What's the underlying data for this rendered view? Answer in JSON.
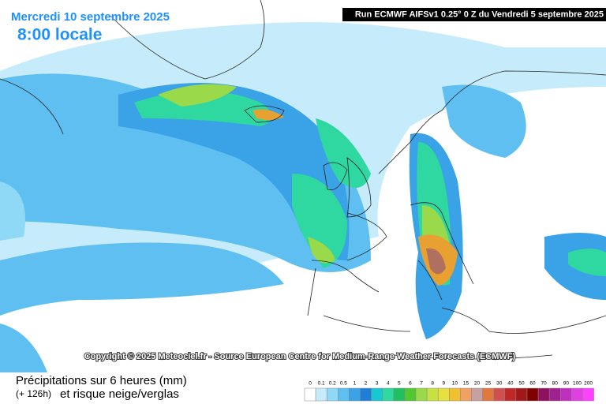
{
  "header": {
    "date": "Mercredi 10 septembre 2025",
    "time": "8:00 locale",
    "run": "Run ECMWF AIFSv1 0.25° 0 Z du Vendredi 5 septembre 2025"
  },
  "copyright": "Copyright © 2025 Meteociel.fr - Source European Centre for Medium-Range Weather Forecasts (ECMWF)",
  "legend": {
    "title": "Précipitations sur 6 heures (mm)",
    "lead_time": "(+ 126h)",
    "subtitle": "et risque neige/verglas",
    "scale": [
      {
        "label": "0",
        "color": "#ffffff"
      },
      {
        "label": "0.1",
        "color": "#c6ecfb"
      },
      {
        "label": "0.2",
        "color": "#8fd8f6"
      },
      {
        "label": "0.5",
        "color": "#5fbff0"
      },
      {
        "label": "1",
        "color": "#3aa2e6"
      },
      {
        "label": "2",
        "color": "#1f7fd8"
      },
      {
        "label": "3",
        "color": "#18c8d0"
      },
      {
        "label": "4",
        "color": "#2fd8a0"
      },
      {
        "label": "5",
        "color": "#20c060"
      },
      {
        "label": "6",
        "color": "#50c830"
      },
      {
        "label": "7",
        "color": "#9ad94a"
      },
      {
        "label": "8",
        "color": "#c8e040"
      },
      {
        "label": "9",
        "color": "#e8e040"
      },
      {
        "label": "10",
        "color": "#f0c030"
      },
      {
        "label": "15",
        "color": "#f0a060"
      },
      {
        "label": "20",
        "color": "#c8a0a0"
      },
      {
        "label": "25",
        "color": "#e07840"
      },
      {
        "label": "30",
        "color": "#d05050"
      },
      {
        "label": "40",
        "color": "#c02828"
      },
      {
        "label": "50",
        "color": "#a01818"
      },
      {
        "label": "60",
        "color": "#800000"
      },
      {
        "label": "70",
        "color": "#901060"
      },
      {
        "label": "80",
        "color": "#a02090"
      },
      {
        "label": "90",
        "color": "#c030c0"
      },
      {
        "label": "100",
        "color": "#e040e0"
      },
      {
        "label": "200",
        "color": "#ff40ff"
      }
    ]
  }
}
